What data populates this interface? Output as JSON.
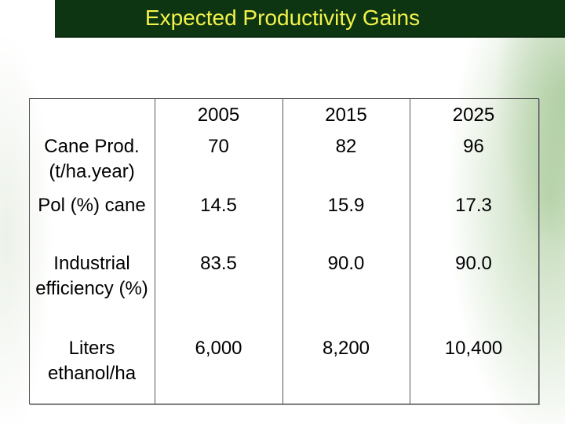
{
  "slide": {
    "title": "Expected Productivity Gains"
  },
  "table": {
    "years": [
      "2005",
      "2015",
      "2025"
    ],
    "rows": [
      {
        "label": "Cane Prod. (t/ha.year)",
        "values": [
          "70",
          "82",
          "96"
        ]
      },
      {
        "label": "Pol (%) cane",
        "values": [
          "14.5",
          "15.9",
          "17.3"
        ]
      },
      {
        "label": "Industrial efficiency (%)",
        "values": [
          "83.5",
          "90.0",
          "90.0"
        ]
      },
      {
        "label": "Liters ethanol/ha",
        "values": [
          "6,000",
          "8,200",
          "10,400"
        ]
      }
    ]
  }
}
